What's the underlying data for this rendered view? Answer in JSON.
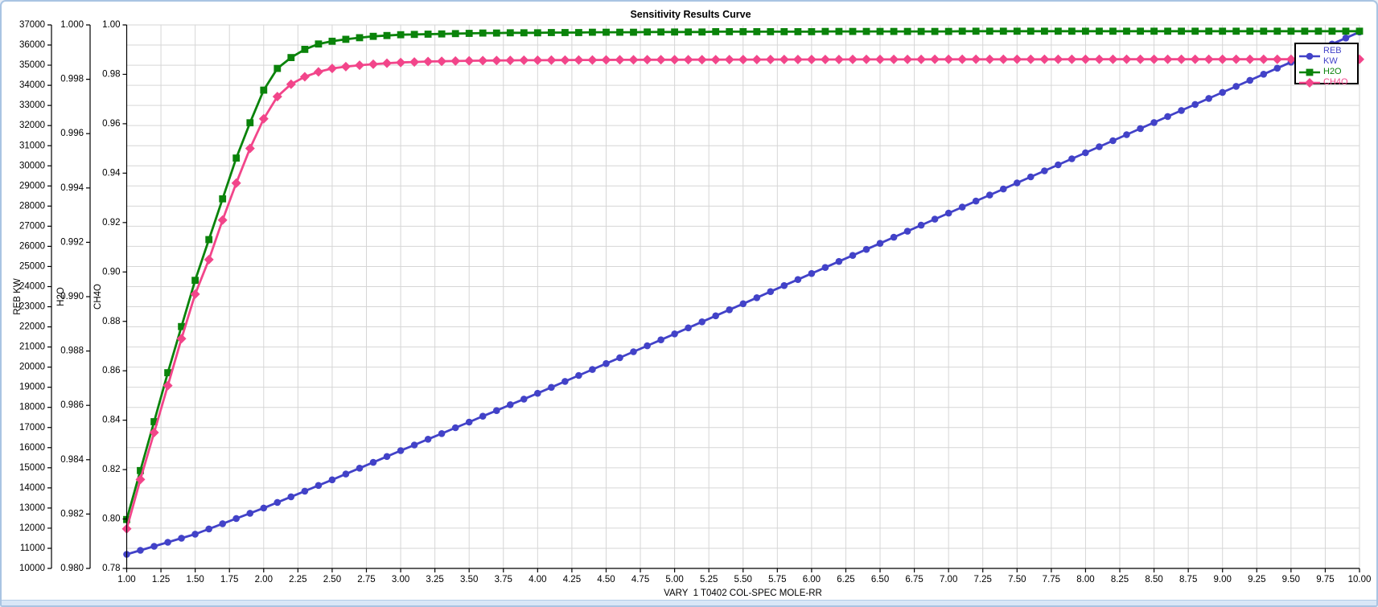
{
  "window": {
    "title": "Sensitivity Results Curve"
  },
  "colors": {
    "background": "#ffffff",
    "frame": "#a9c4e2",
    "frame_fill": "#d9e7f7",
    "grid": "#d6d6d6",
    "axis": "#000000",
    "text": "#000000",
    "series_blue": "#4242c8",
    "series_green": "#0a830a",
    "series_pink": "#f2458a"
  },
  "chart_data": {
    "type": "line",
    "title": "Sensitivity Results Curve",
    "xlabel": "VARY  1 T0402 COL-SPEC MOLE-RR",
    "grid": true,
    "legend_position": "top-right",
    "x_axis": {
      "min": 1.0,
      "max": 10.0,
      "tick_step": 0.25,
      "decimals": 2
    },
    "y_axes": [
      {
        "title": "REB KW",
        "min": 10000,
        "max": 37000,
        "tick_step": 1000,
        "decimals": 0
      },
      {
        "title": "H2O",
        "min": 0.98,
        "max": 1.0,
        "tick_step": 0.002,
        "decimals": 3
      },
      {
        "title": "CH4O",
        "min": 0.78,
        "max": 1.0,
        "tick_step": 0.02,
        "decimals": 2
      }
    ],
    "x": [
      1.0,
      1.1,
      1.2,
      1.3,
      1.4,
      1.5,
      1.6,
      1.7,
      1.8,
      1.9,
      2.0,
      2.1,
      2.2,
      2.3,
      2.4,
      2.5,
      2.6,
      2.7,
      2.8,
      2.9,
      3.0,
      3.1,
      3.2,
      3.3,
      3.4,
      3.5,
      3.6,
      3.7,
      3.8,
      3.9,
      4.0,
      4.1,
      4.2,
      4.3,
      4.4,
      4.5,
      4.6,
      4.7,
      4.8,
      4.9,
      5.0,
      5.1,
      5.2,
      5.3,
      5.4,
      5.5,
      5.6,
      5.7,
      5.8,
      5.9,
      6.0,
      6.1,
      6.2,
      6.3,
      6.4,
      6.5,
      6.6,
      6.7,
      6.8,
      6.9,
      7.0,
      7.1,
      7.2,
      7.3,
      7.4,
      7.5,
      7.6,
      7.7,
      7.8,
      7.9,
      8.0,
      8.1,
      8.2,
      8.3,
      8.4,
      8.5,
      8.6,
      8.7,
      8.8,
      8.9,
      9.0,
      9.1,
      9.2,
      9.3,
      9.4,
      9.5,
      9.6,
      9.7,
      9.8,
      9.9,
      10.0
    ],
    "series": [
      {
        "name": "REB KW",
        "axis": 0,
        "color": "#4242c8",
        "marker": "circle",
        "values": [
          10700,
          10900,
          11100,
          11300,
          11500,
          11700,
          11960,
          12220,
          12480,
          12740,
          13000,
          13280,
          13560,
          13840,
          14120,
          14400,
          14690,
          14980,
          15270,
          15560,
          15850,
          16130,
          16420,
          16700,
          16990,
          17270,
          17560,
          17840,
          18130,
          18410,
          18700,
          18995,
          19290,
          19585,
          19880,
          20175,
          20470,
          20765,
          21060,
          21355,
          21650,
          21950,
          22250,
          22550,
          22850,
          23150,
          23450,
          23750,
          24050,
          24350,
          24650,
          24950,
          25250,
          25550,
          25850,
          26150,
          26450,
          26750,
          27050,
          27350,
          27650,
          27950,
          28250,
          28550,
          28850,
          29150,
          29450,
          29750,
          30050,
          30350,
          30650,
          30950,
          31250,
          31550,
          31850,
          32150,
          32450,
          32750,
          33050,
          33350,
          33650,
          33950,
          34250,
          34550,
          34850,
          35150,
          35450,
          35750,
          36050,
          36350,
          36650
        ]
      },
      {
        "name": "H2O",
        "axis": 1,
        "color": "#0a830a",
        "marker": "square",
        "values": [
          0.9818,
          0.9836,
          0.9854,
          0.9872,
          0.9889,
          0.9906,
          0.9921,
          0.9936,
          0.9951,
          0.9964,
          0.9976,
          0.9984,
          0.9988,
          0.9991,
          0.9993,
          0.9994,
          0.99947,
          0.99953,
          0.99958,
          0.99961,
          0.99964,
          0.99965,
          0.99966,
          0.99967,
          0.99968,
          0.99969,
          0.9997,
          0.9997,
          0.99971,
          0.99971,
          0.99971,
          0.99972,
          0.99972,
          0.99972,
          0.99973,
          0.99973,
          0.99973,
          0.99973,
          0.99974,
          0.99974,
          0.99974,
          0.99974,
          0.99974,
          0.99975,
          0.99975,
          0.99975,
          0.99975,
          0.99975,
          0.99975,
          0.99975,
          0.99975,
          0.99976,
          0.99976,
          0.99976,
          0.99976,
          0.99976,
          0.99976,
          0.99976,
          0.99976,
          0.99976,
          0.99976,
          0.99977,
          0.99977,
          0.99977,
          0.99977,
          0.99977,
          0.99977,
          0.99977,
          0.99977,
          0.99977,
          0.99977,
          0.99977,
          0.99977,
          0.99977,
          0.99977,
          0.99977,
          0.99977,
          0.99977,
          0.99977,
          0.99977,
          0.99977,
          0.99977,
          0.99977,
          0.99977,
          0.99977,
          0.99977,
          0.99977,
          0.99977,
          0.99977,
          0.99977,
          0.99977
        ]
      },
      {
        "name": "CH4O",
        "axis": 2,
        "color": "#f2458a",
        "marker": "diamond",
        "values": [
          0.796,
          0.816,
          0.835,
          0.854,
          0.873,
          0.891,
          0.905,
          0.921,
          0.936,
          0.95,
          0.962,
          0.971,
          0.976,
          0.979,
          0.981,
          0.9824,
          0.9831,
          0.9837,
          0.9841,
          0.9845,
          0.9848,
          0.985,
          0.9852,
          0.9853,
          0.9854,
          0.9855,
          0.98555,
          0.9856,
          0.98565,
          0.9857,
          0.98572,
          0.98575,
          0.98577,
          0.9858,
          0.98582,
          0.98584,
          0.98586,
          0.98588,
          0.9859,
          0.98591,
          0.98592,
          0.98593,
          0.98594,
          0.98595,
          0.98596,
          0.98597,
          0.98598,
          0.98599,
          0.986,
          0.986,
          0.98601,
          0.98602,
          0.98602,
          0.98603,
          0.98603,
          0.98604,
          0.98604,
          0.98605,
          0.98605,
          0.98606,
          0.98606,
          0.98606,
          0.98607,
          0.98607,
          0.98607,
          0.98608,
          0.98608,
          0.98608,
          0.98608,
          0.98609,
          0.98609,
          0.98609,
          0.98609,
          0.98609,
          0.9861,
          0.9861,
          0.9861,
          0.9861,
          0.9861,
          0.9861,
          0.9861,
          0.9861,
          0.9861,
          0.9861,
          0.9861,
          0.9861,
          0.9861,
          0.9861,
          0.9861,
          0.9861,
          0.9861
        ]
      }
    ]
  }
}
